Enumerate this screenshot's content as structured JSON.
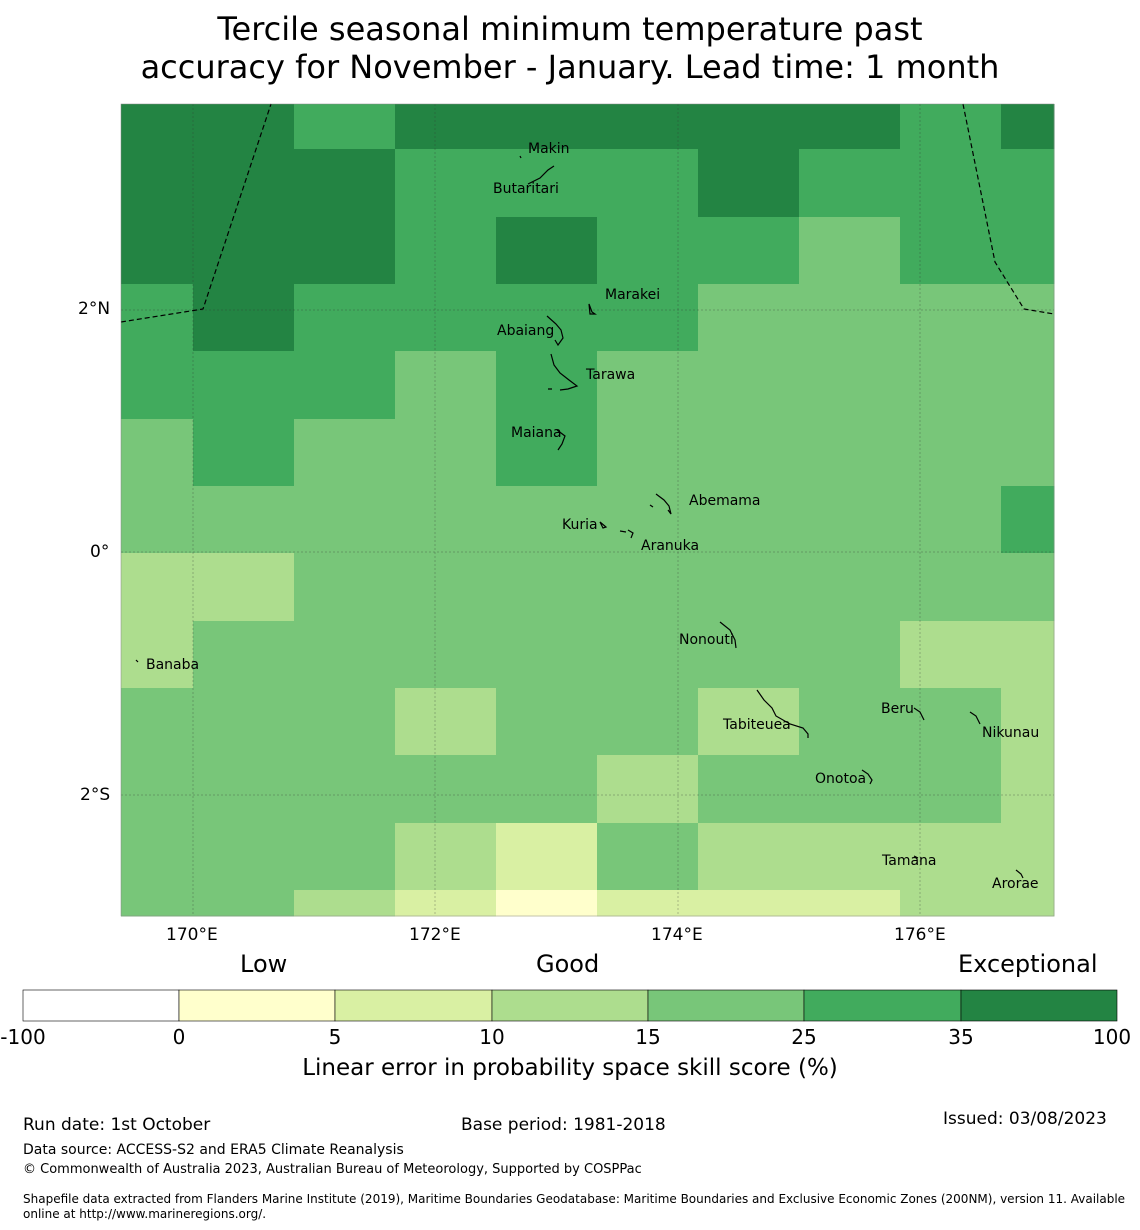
{
  "title_line1": "Tercile seasonal minimum temperature past",
  "title_line2": "accuracy for November - January. Lead time: 1 month",
  "map": {
    "lon_labels": [
      "170°E",
      "172°E",
      "174°E",
      "176°E"
    ],
    "lat_labels": [
      "2°N",
      "0°",
      "2°S"
    ],
    "islands": [
      {
        "name": "Makin"
      },
      {
        "name": "Butaritari"
      },
      {
        "name": "Marakei"
      },
      {
        "name": "Abaiang"
      },
      {
        "name": "Tarawa"
      },
      {
        "name": "Maiana"
      },
      {
        "name": "Abemama"
      },
      {
        "name": "Kuria"
      },
      {
        "name": "Aranuka"
      },
      {
        "name": "Nonouti"
      },
      {
        "name": "Banaba"
      },
      {
        "name": "Beru"
      },
      {
        "name": "Tabiteuea"
      },
      {
        "name": "Nikunau"
      },
      {
        "name": "Onotoa"
      },
      {
        "name": "Tamana"
      },
      {
        "name": "Arorae"
      }
    ],
    "grid_classes": [
      [
        6,
        6,
        5,
        6,
        6,
        6,
        6,
        6,
        5,
        6
      ],
      [
        6,
        6,
        6,
        5,
        5,
        5,
        6,
        5,
        5,
        5
      ],
      [
        6,
        6,
        6,
        5,
        6,
        5,
        5,
        4,
        5,
        5
      ],
      [
        5,
        6,
        5,
        5,
        5,
        5,
        4,
        4,
        4,
        4
      ],
      [
        5,
        5,
        5,
        4,
        5,
        4,
        4,
        4,
        4,
        4
      ],
      [
        4,
        5,
        4,
        4,
        5,
        4,
        4,
        4,
        4,
        4
      ],
      [
        4,
        4,
        4,
        4,
        4,
        4,
        4,
        4,
        4,
        5
      ],
      [
        3,
        3,
        4,
        4,
        4,
        4,
        4,
        4,
        4,
        4
      ],
      [
        3,
        4,
        4,
        4,
        4,
        4,
        4,
        4,
        3,
        3
      ],
      [
        4,
        4,
        4,
        3,
        4,
        4,
        3,
        4,
        4,
        3
      ],
      [
        4,
        4,
        4,
        4,
        4,
        3,
        4,
        4,
        4,
        3
      ],
      [
        4,
        4,
        4,
        3,
        2,
        4,
        3,
        3,
        3,
        3
      ],
      [
        4,
        4,
        3,
        2,
        1,
        2,
        2,
        2,
        3,
        3
      ]
    ]
  },
  "colorbar": {
    "categories": [
      "Low",
      "Good",
      "Exceptional"
    ],
    "ticks": [
      "-100",
      "0",
      "5",
      "10",
      "15",
      "25",
      "35",
      "100"
    ],
    "colors": [
      "#ffffff",
      "#ffffcc",
      "#d9f0a3",
      "#addd8e",
      "#78c679",
      "#41ab5d",
      "#238443"
    ],
    "label": "Linear error in probability space skill score (%)"
  },
  "footer": {
    "run_date": "Run date: 1st October",
    "base_period": "Base period: 1981-2018",
    "issued": "Issued: 03/08/2023",
    "data_source": "Data source: ACCESS-S2 and ERA5 Climate Reanalysis",
    "copyright": "© Commonwealth of Australia 2023, Australian Bureau of Meteorology, Supported by COSPPac",
    "shapefile_line1": "Shapefile data extracted from Flanders Marine Institute (2019), Maritime Boundaries Geodatabase: Maritime Boundaries and Exclusive Economic Zones (200NM), version 11. Available",
    "shapefile_line2": "online at http://www.marineregions.org/."
  }
}
